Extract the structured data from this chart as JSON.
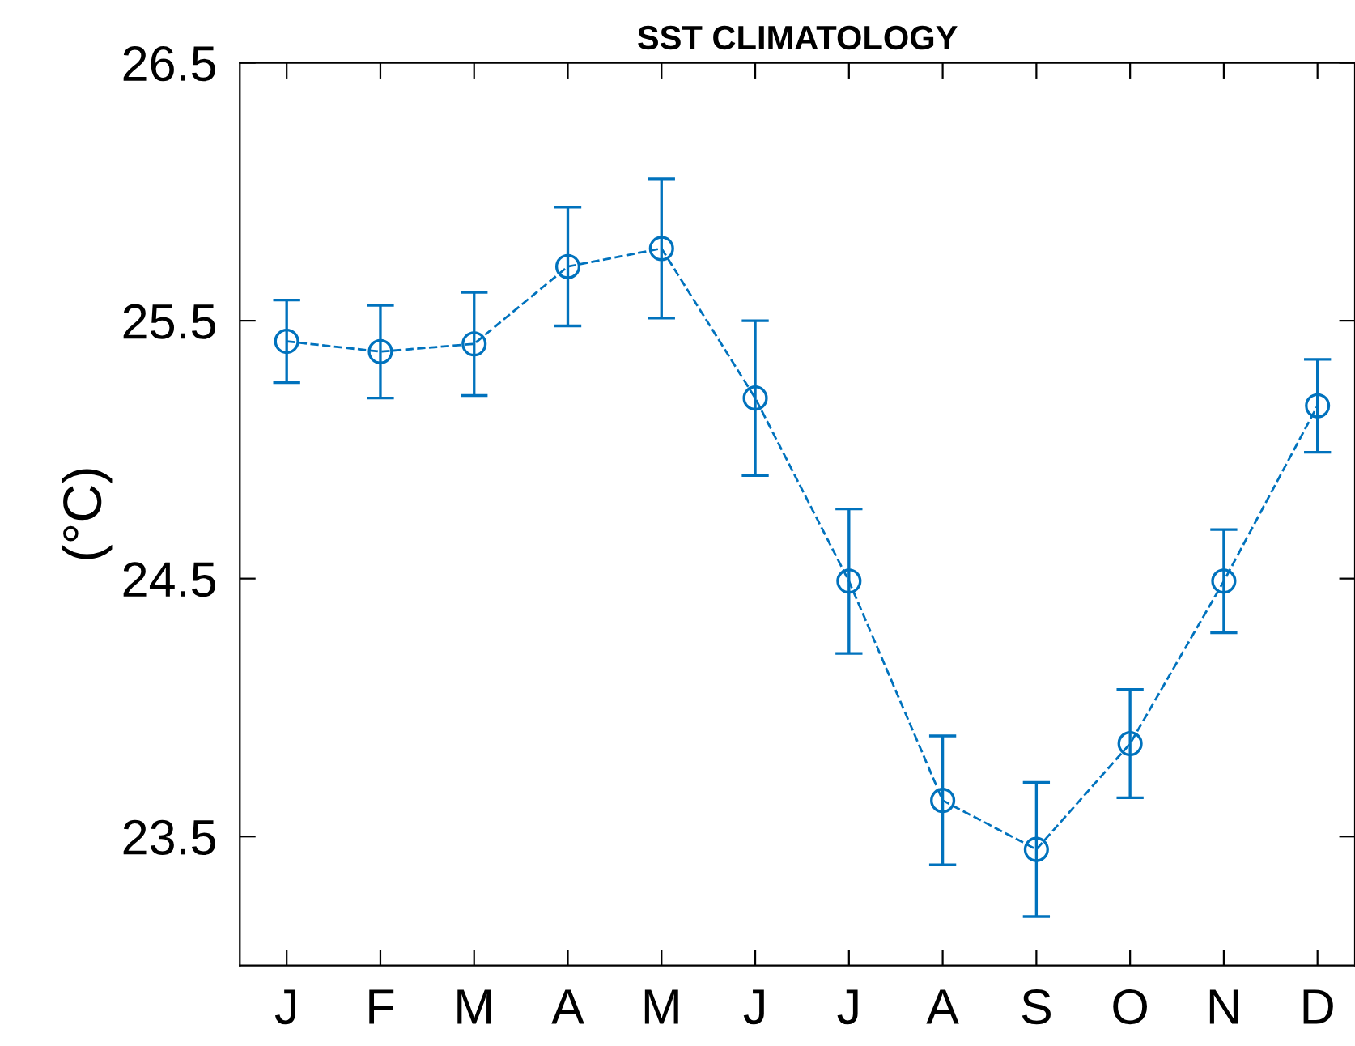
{
  "chart_data": {
    "type": "line",
    "title": "SST CLIMATOLOGY",
    "ylabel": "(°C)",
    "categories": [
      "J",
      "F",
      "M",
      "A",
      "M",
      "J",
      "J",
      "A",
      "S",
      "O",
      "N",
      "D"
    ],
    "series": [
      {
        "color": "#0072bd",
        "values": [
          25.42,
          25.38,
          25.41,
          25.71,
          25.78,
          25.2,
          24.49,
          23.64,
          23.45,
          23.86,
          24.49,
          25.17
        ],
        "errors": [
          0.16,
          0.18,
          0.2,
          0.23,
          0.27,
          0.3,
          0.28,
          0.25,
          0.26,
          0.21,
          0.2,
          0.18
        ]
      }
    ],
    "ylim": [
      23,
      26.5
    ],
    "yticks": [
      23.5,
      24.5,
      25.5,
      26.5
    ],
    "grid": false,
    "legend": false,
    "marker": "circle",
    "line_style": "dashed"
  }
}
